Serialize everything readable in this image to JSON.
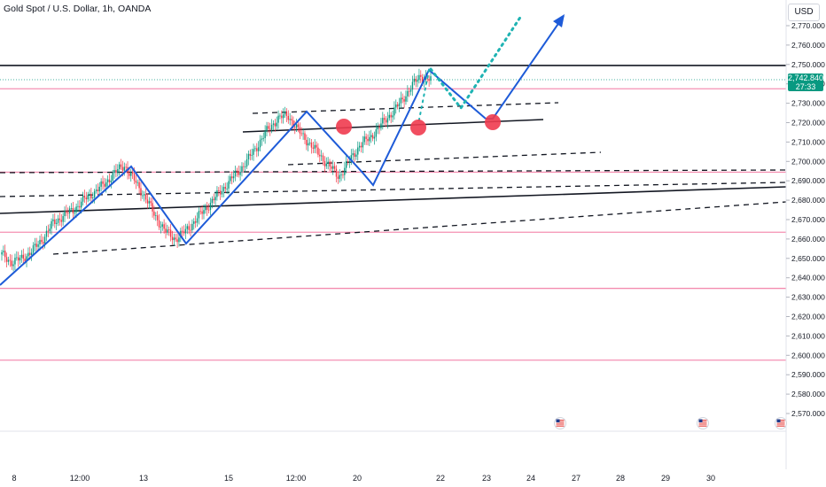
{
  "header": {
    "symbol_title": "Gold Spot / U.S. Dollar, 1h, OANDA",
    "currency": "USD"
  },
  "last_price": {
    "value": "2,742.840",
    "countdown": "27:33",
    "color": "#089981"
  },
  "chart_data": {
    "type": "candlestick",
    "title": "Gold Spot / U.S. Dollar, 1h, OANDA",
    "ylim": [
      2563,
      2785
    ],
    "y_ticks": [
      "2,770.000",
      "2,760.000",
      "2,750.000",
      "2,740.000",
      "2,730.000",
      "2,720.000",
      "2,710.000",
      "2,700.000",
      "2,690.000",
      "2,680.000",
      "2,670.000",
      "2,660.000",
      "2,650.000",
      "2,640.000",
      "2,630.000",
      "2,620.000",
      "2,610.000",
      "2,600.000",
      "2,590.000",
      "2,580.000",
      "2,570.000"
    ],
    "x_ticks": [
      "8",
      "12:00",
      "13",
      "15",
      "12:00",
      "20",
      "22",
      "23",
      "24",
      "27",
      "28",
      "29",
      "30"
    ],
    "horizontal_levels": [
      {
        "price": 2749.5,
        "color": "#131722",
        "style": "solid"
      },
      {
        "price": 2737.5,
        "color": "#f06292",
        "style": "solid"
      },
      {
        "price": 2694.5,
        "color": "#f06292",
        "style": "solid"
      },
      {
        "price": 2663.5,
        "color": "#f06292",
        "style": "solid"
      },
      {
        "price": 2634.5,
        "color": "#f06292",
        "style": "solid"
      },
      {
        "price": 2597.5,
        "color": "#f06292",
        "style": "solid"
      }
    ],
    "candles_close_path": [
      2652,
      2648,
      2650,
      2654,
      2660,
      2668,
      2672,
      2675,
      2680,
      2684,
      2688,
      2694,
      2698,
      2690,
      2682,
      2672,
      2664,
      2660,
      2664,
      2670,
      2676,
      2682,
      2688,
      2694,
      2700,
      2708,
      2716,
      2722,
      2724,
      2716,
      2710,
      2704,
      2698,
      2692,
      2700,
      2708,
      2712,
      2718,
      2724,
      2730,
      2738,
      2744,
      2742
    ]
  },
  "drawings": {
    "line_color": "#1e5bd8",
    "projection_color": "#1fb3b3",
    "marker_color": "#ef3b4f"
  },
  "icons": {
    "event_flag": "us-flag-icon"
  }
}
